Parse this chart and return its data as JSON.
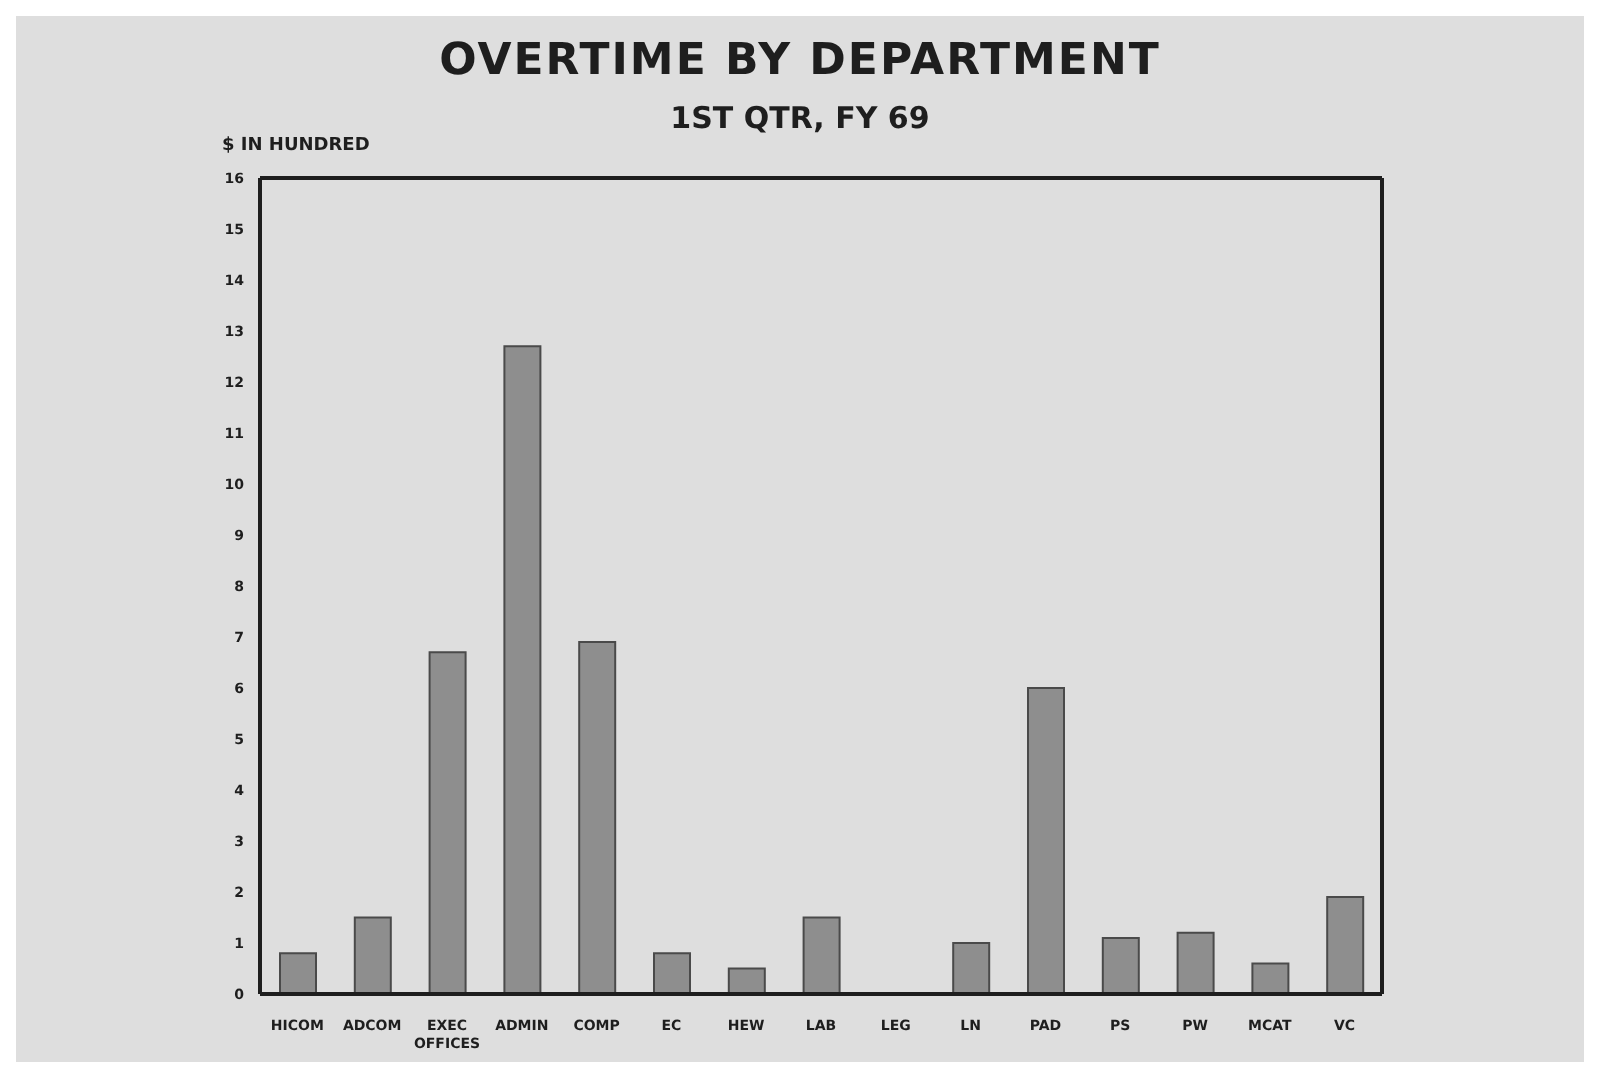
{
  "chart_data": {
    "type": "bar",
    "title": "OVERTIME BY DEPARTMENT",
    "subtitle": "1ST QTR, FY 69",
    "ylabel": "$ IN HUNDRED",
    "categories": [
      "HICOM",
      "ADCOM",
      "EXEC OFFICES",
      "ADMIN",
      "COMP",
      "EC",
      "HEW",
      "LAB",
      "LEG",
      "LN",
      "PAD",
      "PS",
      "PW",
      "MCAT",
      "VC"
    ],
    "values": [
      0.8,
      1.5,
      6.7,
      12.7,
      6.9,
      0.8,
      0.5,
      1.5,
      0,
      1.0,
      6.0,
      1.1,
      1.2,
      0.6,
      1.9
    ],
    "color": "#8e8e8e",
    "ylim": [
      0,
      16
    ],
    "yticks": [
      0,
      1,
      2,
      3,
      4,
      5,
      6,
      7,
      8,
      9,
      10,
      11,
      12,
      13,
      14,
      15,
      16
    ]
  }
}
